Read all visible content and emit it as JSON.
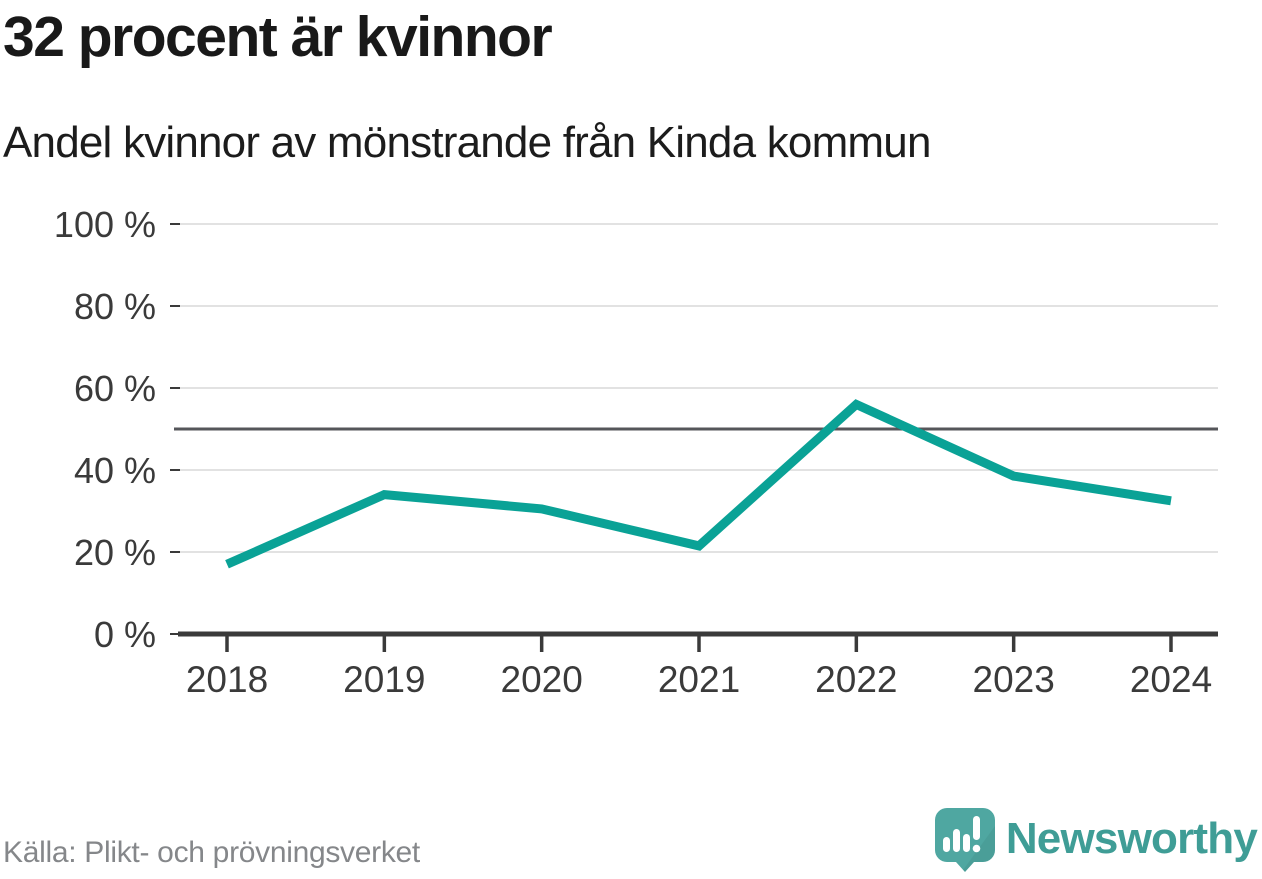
{
  "header": {
    "title": "32 procent är kvinnor",
    "subtitle": "Andel kvinnor av mönstrande från Kinda kommun"
  },
  "footer": {
    "source": "Källa: Plikt- och prövningsverket",
    "brand": "Newsworthy"
  },
  "colors": {
    "line": "#0aa296",
    "reference_line": "#55565a",
    "gridline": "#e2e2e2",
    "axis": "#3a3a3a",
    "tick": "#3a3a3a",
    "label": "#3a3a3a",
    "title_text": "#191919",
    "source_text": "#85878a",
    "brand_teal": "#3f9d96",
    "logo_bubble": "#4fa7a1"
  },
  "chart_data": {
    "type": "line",
    "title": "32 procent är kvinnor",
    "subtitle": "Andel kvinnor av mönstrande från Kinda kommun",
    "x": [
      "2018",
      "2019",
      "2020",
      "2021",
      "2022",
      "2023",
      "2024"
    ],
    "series": [
      {
        "name": "Andel kvinnor av mönstrande",
        "values": [
          17,
          34,
          30.5,
          21.5,
          56,
          38.5,
          32.5
        ]
      }
    ],
    "yticks": [
      {
        "value": 0,
        "label": "0 %"
      },
      {
        "value": 20,
        "label": "20 %"
      },
      {
        "value": 40,
        "label": "40 %"
      },
      {
        "value": 60,
        "label": "60 %"
      },
      {
        "value": 80,
        "label": "80 %"
      },
      {
        "value": 100,
        "label": "100 %"
      }
    ],
    "ylim": [
      0,
      100
    ],
    "reference_line": 50,
    "grid": "horizontal",
    "legend": "none",
    "source": "Källa: Plikt- och prövningsverket"
  }
}
